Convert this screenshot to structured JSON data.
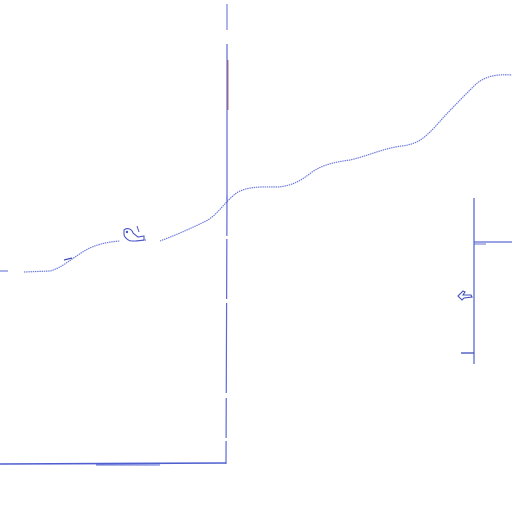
{
  "map": {
    "background_color": "#ffffff",
    "line_color": "#5a6ad6",
    "dark_line_color": "#3f4fb8",
    "accent_color": "#b24a3a",
    "symbols": [
      {
        "name": "plane-symbol-left"
      },
      {
        "name": "plane-symbol-right"
      }
    ]
  }
}
